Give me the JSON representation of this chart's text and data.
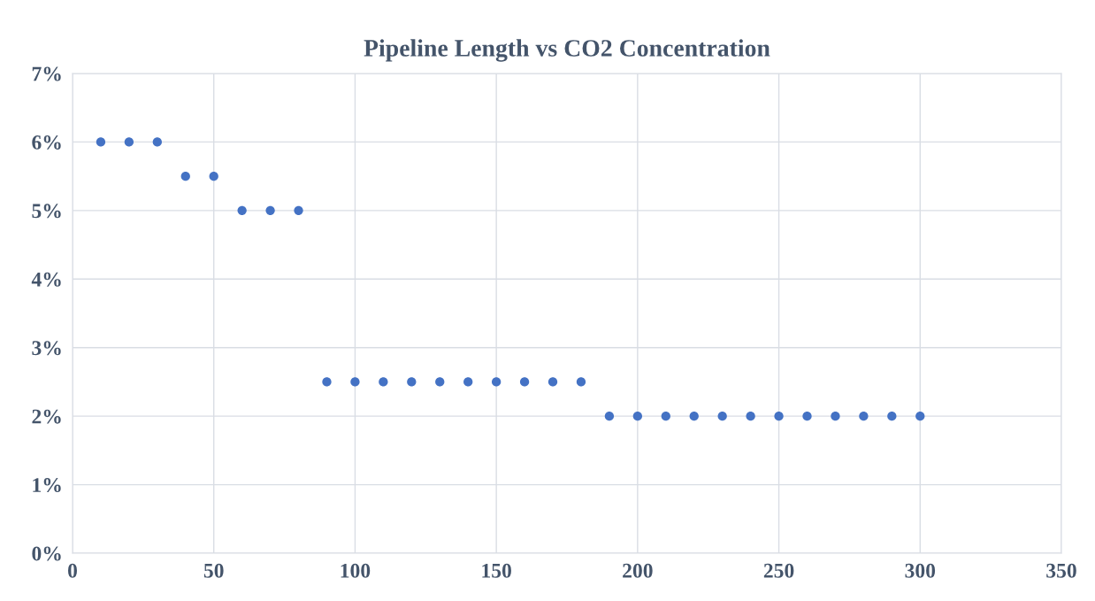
{
  "chart_data": {
    "type": "scatter",
    "title": "Pipeline Length vs CO2 Concentration",
    "x": [
      10,
      20,
      30,
      40,
      50,
      60,
      70,
      80,
      90,
      100,
      110,
      120,
      130,
      140,
      150,
      160,
      170,
      180,
      190,
      200,
      210,
      220,
      230,
      240,
      250,
      260,
      270,
      280,
      290,
      300
    ],
    "series": [
      {
        "color": "#4472c4",
        "values": [
          6,
          6,
          6,
          5.5,
          5.5,
          5,
          5,
          5,
          2.5,
          2.5,
          2.5,
          2.5,
          2.5,
          2.5,
          2.5,
          2.5,
          2.5,
          2.5,
          2,
          2,
          2,
          2,
          2,
          2,
          2,
          2,
          2,
          2,
          2,
          2
        ]
      }
    ],
    "xlim": [
      0,
      350
    ],
    "xticks": [
      0,
      50,
      100,
      150,
      200,
      250,
      300,
      350
    ],
    "ylim": [
      0,
      7
    ],
    "yticks": [
      {
        "value": 0,
        "label": "0%"
      },
      {
        "value": 1,
        "label": "1%"
      },
      {
        "value": 2,
        "label": "2%"
      },
      {
        "value": 3,
        "label": "3%"
      },
      {
        "value": 4,
        "label": "4%"
      },
      {
        "value": 5,
        "label": "5%"
      },
      {
        "value": 6,
        "label": "6%"
      },
      {
        "value": 7,
        "label": "7%"
      }
    ],
    "grid": true,
    "marker": "circle"
  }
}
